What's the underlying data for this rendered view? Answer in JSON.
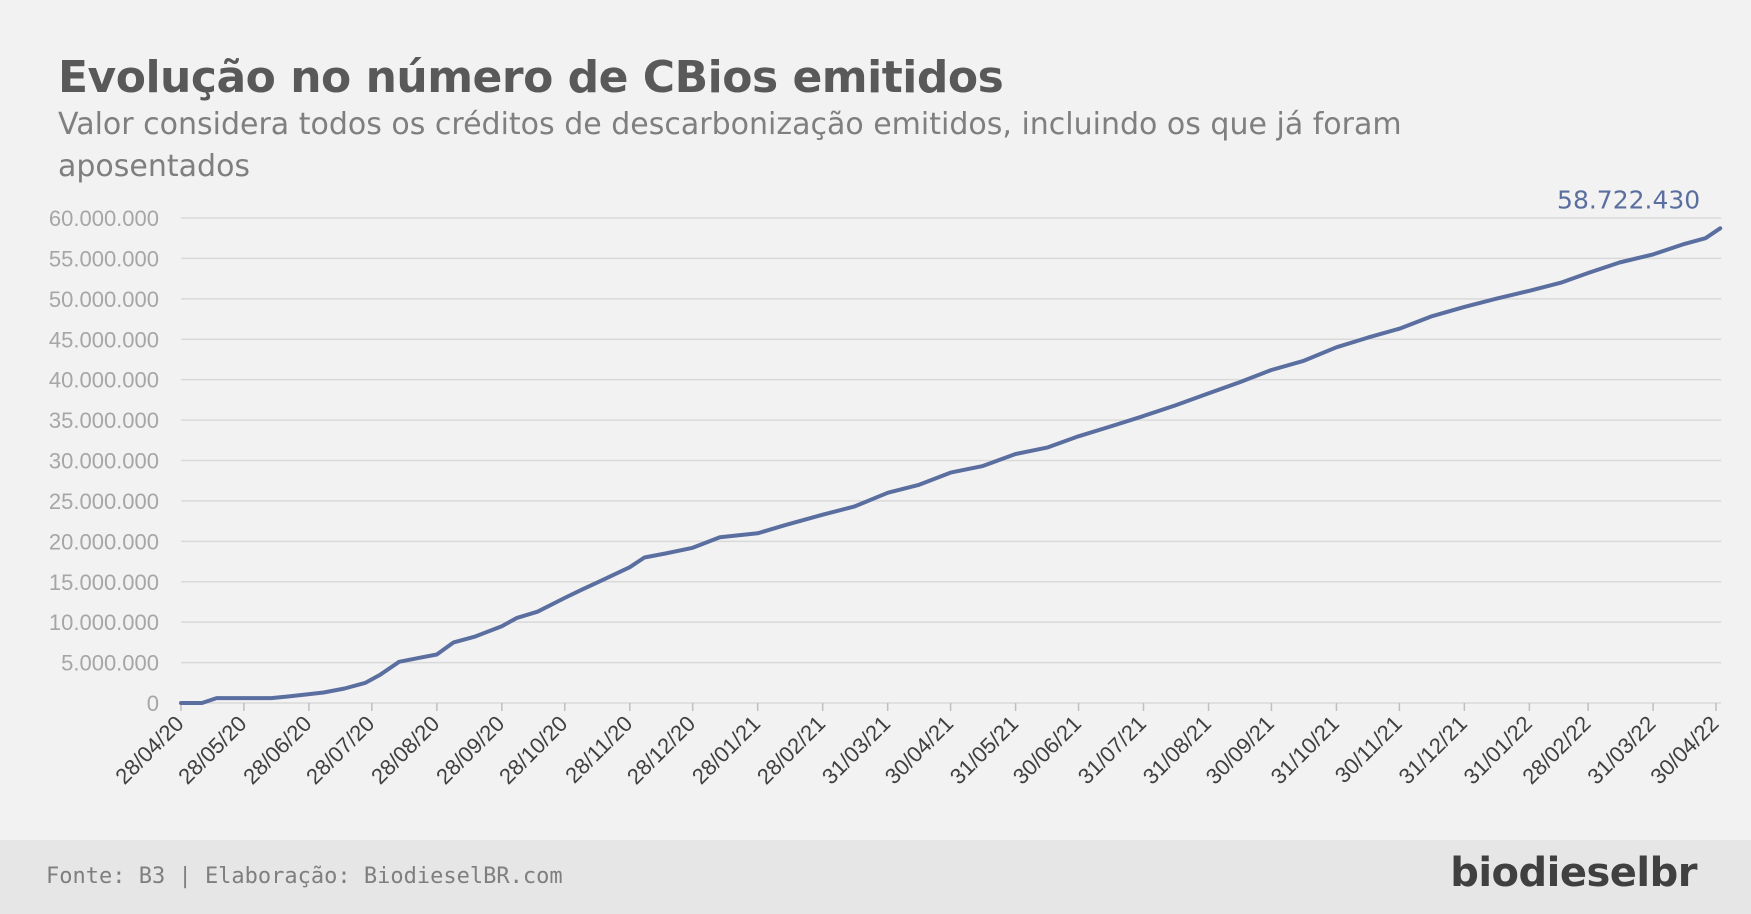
{
  "title": "Evolução no número de CBios emitidos",
  "subtitle": "Valor considera todos os créditos de descarbonização emitidos, incluindo os que já foram aposentados",
  "footer": {
    "source": "Fonte: B3 | Elaboração: BiodieselBR.com",
    "logo": "biodieselbr"
  },
  "colors": {
    "line": "#5a6ea0",
    "background": "#f2f2f2",
    "footer_background": "#e6e6e6"
  },
  "chart_data": {
    "type": "line",
    "grid": true,
    "ylim": [
      0,
      60000000
    ],
    "y_ticks": [
      0,
      5000000,
      10000000,
      15000000,
      20000000,
      25000000,
      30000000,
      35000000,
      40000000,
      45000000,
      50000000,
      55000000,
      60000000
    ],
    "y_tick_labels": [
      "0",
      "5.000.000",
      "10.000.000",
      "15.000.000",
      "20.000.000",
      "25.000.000",
      "30.000.000",
      "35.000.000",
      "40.000.000",
      "45.000.000",
      "50.000.000",
      "55.000.000",
      "60.000.000"
    ],
    "x_ticks": [
      "2020-04-28",
      "2020-05-28",
      "2020-06-28",
      "2020-07-28",
      "2020-08-28",
      "2020-09-28",
      "2020-10-28",
      "2020-11-28",
      "2020-12-28",
      "2021-01-28",
      "2021-02-28",
      "2021-03-31",
      "2021-04-30",
      "2021-05-31",
      "2021-06-30",
      "2021-07-31",
      "2021-08-31",
      "2021-09-30",
      "2021-10-31",
      "2021-11-30",
      "2021-12-31",
      "2022-01-31",
      "2022-02-28",
      "2022-03-31",
      "2022-04-30"
    ],
    "x_tick_labels": [
      "28/04/20",
      "28/05/20",
      "28/06/20",
      "28/07/20",
      "28/08/20",
      "28/09/20",
      "28/10/20",
      "28/11/20",
      "28/12/20",
      "28/01/21",
      "28/02/21",
      "31/03/21",
      "30/04/21",
      "31/05/21",
      "30/06/21",
      "31/07/21",
      "31/08/21",
      "30/09/21",
      "31/10/21",
      "30/11/21",
      "31/12/21",
      "31/01/22",
      "28/02/22",
      "31/03/22",
      "30/04/22"
    ],
    "series": [
      {
        "x": [
          "2020-04-28",
          "2020-05-08",
          "2020-05-15",
          "2020-06-10",
          "2020-06-18",
          "2020-06-25",
          "2020-07-05",
          "2020-07-15",
          "2020-07-25",
          "2020-08-01",
          "2020-08-10",
          "2020-08-20",
          "2020-08-28",
          "2020-09-05",
          "2020-09-15",
          "2020-09-28",
          "2020-10-05",
          "2020-10-15",
          "2020-10-28",
          "2020-11-05",
          "2020-11-15",
          "2020-11-28",
          "2020-12-05",
          "2020-12-15",
          "2020-12-28",
          "2021-01-10",
          "2021-01-28",
          "2021-02-10",
          "2021-02-28",
          "2021-03-15",
          "2021-03-31",
          "2021-04-15",
          "2021-04-30",
          "2021-05-15",
          "2021-05-31",
          "2021-06-15",
          "2021-06-30",
          "2021-07-15",
          "2021-07-31",
          "2021-08-15",
          "2021-08-31",
          "2021-09-15",
          "2021-09-30",
          "2021-10-15",
          "2021-10-31",
          "2021-11-15",
          "2021-11-30",
          "2021-12-15",
          "2021-12-31",
          "2022-01-15",
          "2022-01-31",
          "2022-02-15",
          "2022-02-28",
          "2022-03-15",
          "2022-03-31",
          "2022-04-15",
          "2022-04-25",
          "2022-05-02"
        ],
        "values": [
          0,
          0,
          600000,
          600000,
          800000,
          1000000,
          1300000,
          1800000,
          2500000,
          3500000,
          5100000,
          5600000,
          6000000,
          7500000,
          8200000,
          9500000,
          10500000,
          11300000,
          13000000,
          14000000,
          15200000,
          16800000,
          18000000,
          18500000,
          19200000,
          20500000,
          21000000,
          22000000,
          23300000,
          24300000,
          26000000,
          27000000,
          28500000,
          29300000,
          30800000,
          31600000,
          33000000,
          34200000,
          35500000,
          36800000,
          38300000,
          39700000,
          41200000,
          42300000,
          44000000,
          45200000,
          46300000,
          47800000,
          49000000,
          50000000,
          51000000,
          52000000,
          53200000,
          54500000,
          55500000,
          56800000,
          57500000,
          58722430
        ]
      }
    ],
    "annotations": [
      {
        "text": "58.722.430",
        "x": "2022-05-02",
        "y": 58722430
      }
    ]
  }
}
